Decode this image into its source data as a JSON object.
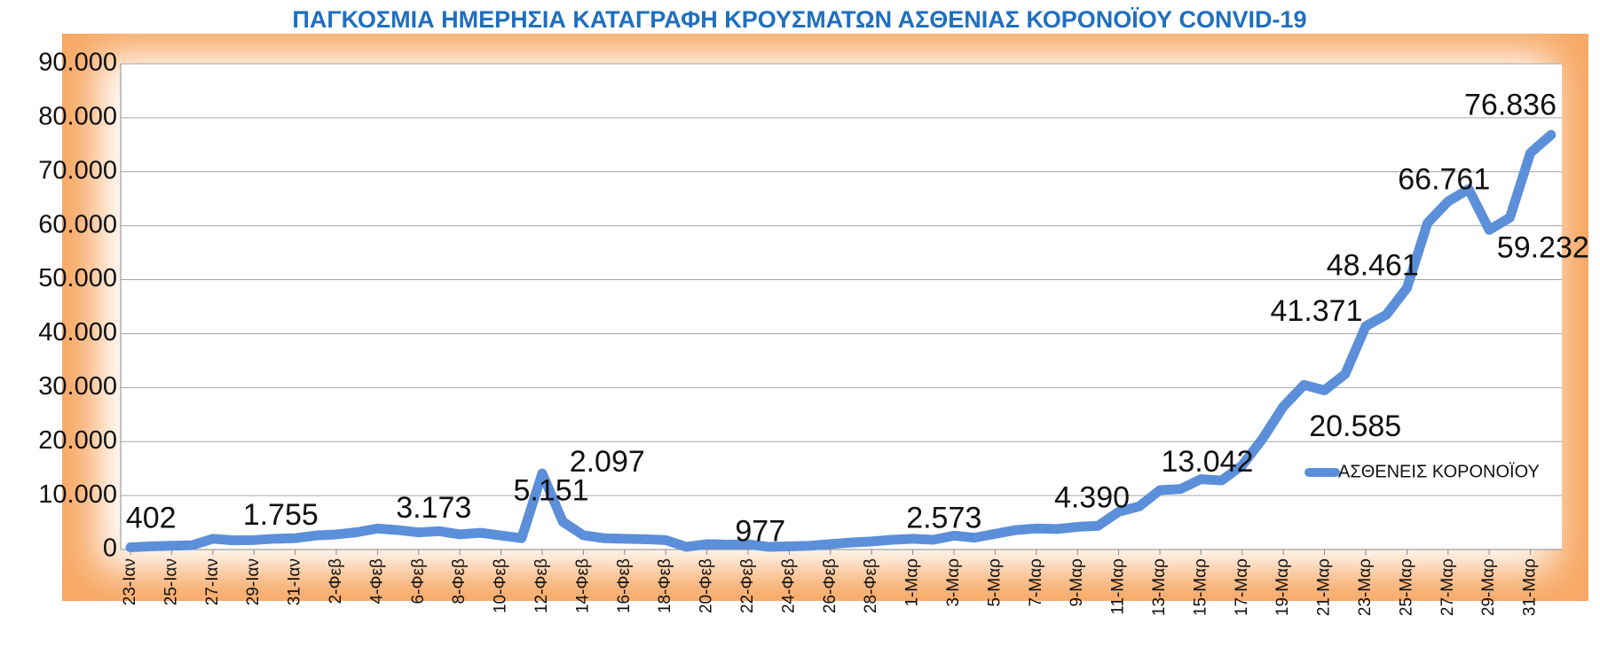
{
  "chart_data": {
    "type": "line",
    "title": "ΠΑΓΚΟΣΜΙΑ ΗΜΕΡΗΣΙΑ ΚΑΤΑΓΡΑΦΗ ΚΡΟΥΣΜΑΤΩΝ ΑΣΘΕΝΙΑΣ ΚΟΡΟΝΟΪΟΥ CONVID-19",
    "categories": [
      "23-Ιαν",
      null,
      "25-Ιαν",
      null,
      "27-Ιαν",
      null,
      "29-Ιαν",
      null,
      "31-Ιαν",
      null,
      "2-Φεβ",
      null,
      "4-Φεβ",
      null,
      "6-Φεβ",
      null,
      "8-Φεβ",
      null,
      "10-Φεβ",
      null,
      "12-Φεβ",
      null,
      "14-Φεβ",
      null,
      "16-Φεβ",
      null,
      "18-Φεβ",
      null,
      "20-Φεβ",
      null,
      "22-Φεβ",
      null,
      "24-Φεβ",
      null,
      "26-Φεβ",
      null,
      "28-Φεβ",
      null,
      "1-Μαρ",
      null,
      "3-Μαρ",
      null,
      "5-Μαρ",
      null,
      "7-Μαρ",
      null,
      "9-Μαρ",
      null,
      "11-Μαρ",
      null,
      "13-Μαρ",
      null,
      "15-Μαρ",
      null,
      "17-Μαρ",
      null,
      "19-Μαρ",
      null,
      "21-Μαρ",
      null,
      "23-Μαρ",
      null,
      "25-Μαρ",
      null,
      "27-Μαρ",
      null,
      "29-Μαρ",
      null,
      "31-Μαρ",
      null
    ],
    "series": [
      {
        "name": "ΑΣΘΕΝΕΙΣ ΚΟΡΟΝΟΪΟΥ",
        "color": "#5b8fd9",
        "values": [
          402,
          600,
          700,
          800,
          2000,
          1700,
          1755,
          2000,
          2100,
          2600,
          2800,
          3200,
          3900,
          3600,
          3173,
          3400,
          2800,
          3100,
          2600,
          2100,
          14100,
          5151,
          2641,
          2097,
          2000,
          1900,
          1750,
          500,
          1000,
          900,
          977,
          500,
          600,
          700,
          1000,
          1300,
          1500,
          1800,
          2000,
          1800,
          2573,
          2200,
          2900,
          3600,
          3900,
          3800,
          4200,
          4390,
          7000,
          8000,
          11000,
          11200,
          13042,
          12800,
          15600,
          20585,
          26500,
          30500,
          29500,
          32500,
          41371,
          43500,
          48461,
          60500,
          64500,
          66761,
          59232,
          61500,
          73500,
          76836
        ],
        "value_labels": [
          "402",
          null,
          null,
          null,
          null,
          null,
          "1.755",
          null,
          null,
          null,
          null,
          null,
          null,
          null,
          "3.173",
          null,
          null,
          null,
          null,
          null,
          null,
          "5.151",
          null,
          "2.097",
          null,
          null,
          null,
          null,
          null,
          null,
          "977",
          null,
          null,
          null,
          null,
          null,
          null,
          null,
          null,
          null,
          "2.573",
          null,
          null,
          null,
          null,
          null,
          null,
          "4.390",
          null,
          null,
          null,
          null,
          "13.042",
          null,
          null,
          "20.585",
          null,
          null,
          null,
          null,
          "41.371",
          null,
          "48.461",
          null,
          null,
          "66.761",
          "59.232",
          null,
          null,
          "76.836"
        ]
      }
    ],
    "ylim": [
      0,
      90000
    ],
    "yticks": [
      0,
      {
        "value": 10000,
        "label": "10.000"
      },
      {
        "value": 20000,
        "label": "20.000"
      },
      {
        "value": 30000,
        "label": "30.000"
      },
      {
        "value": 40000,
        "label": "40.000"
      },
      {
        "value": 50000,
        "label": "50.000"
      },
      {
        "value": 60000,
        "label": "60.000"
      },
      {
        "value": 70000,
        "label": "70.000"
      },
      {
        "value": 80000,
        "label": "80.000"
      },
      {
        "value": 90000,
        "label": "90.000"
      }
    ],
    "grid": true,
    "legend": "right"
  }
}
